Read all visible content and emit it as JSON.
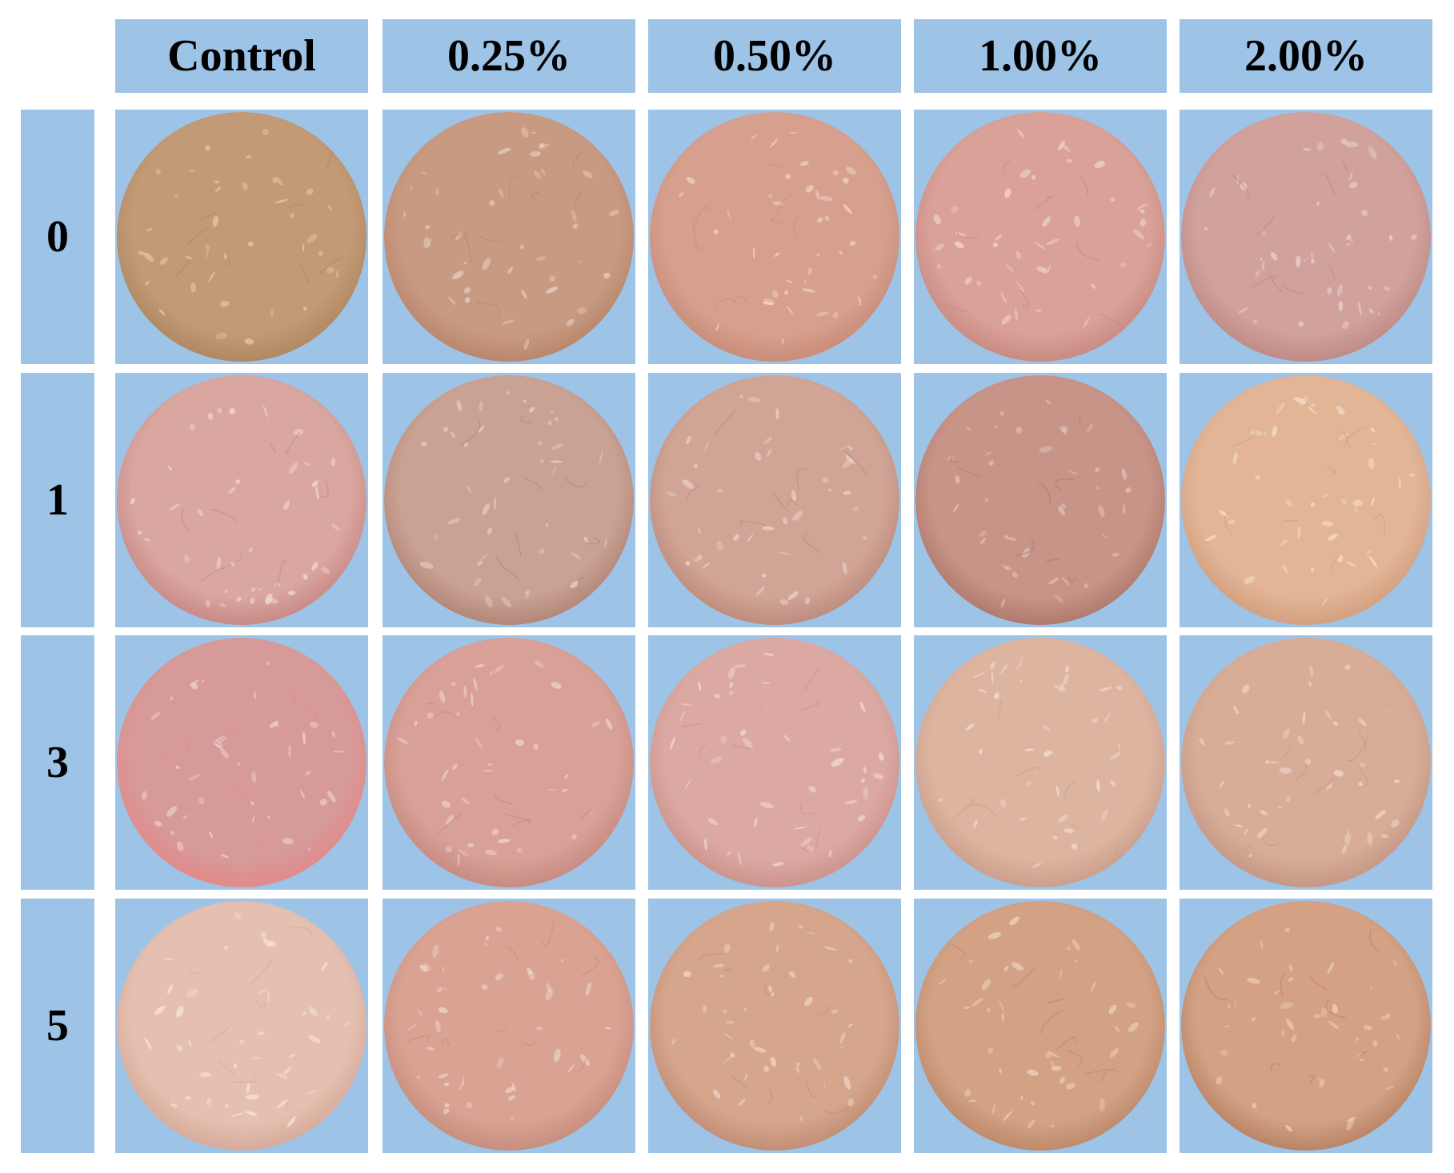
{
  "column_headers": [
    "Control",
    "0.25%",
    "0.50%",
    "1.00%",
    "2.00%"
  ],
  "row_headers": [
    "0",
    "1",
    "3",
    "5"
  ],
  "colors": {
    "cell_background": "#9dc3e6",
    "page_background": "#ffffff"
  },
  "samples": [
    [
      {
        "base": "#c39a76",
        "edge": "#b08862",
        "fleck": "#e2cdb8"
      },
      {
        "base": "#c99a82",
        "edge": "#b8876d",
        "fleck": "#e8d2c4"
      },
      {
        "base": "#d7a08e",
        "edge": "#c98d79",
        "fleck": "#efd6cc"
      },
      {
        "base": "#d9a198",
        "edge": "#c98b82",
        "fleck": "#f0d9d4"
      },
      {
        "base": "#d1a19c",
        "edge": "#c08b86",
        "fleck": "#ead6d4"
      }
    ],
    [
      {
        "base": "#d9a6a0",
        "edge": "#c98a86",
        "fleck": "#f1dcd8"
      },
      {
        "base": "#c9a294",
        "edge": "#b28778",
        "fleck": "#e6d2c8"
      },
      {
        "base": "#d1a596",
        "edge": "#bd8c7e",
        "fleck": "#ecd8cf"
      },
      {
        "base": "#c89487",
        "edge": "#b07b6e",
        "fleck": "#e3c9c0"
      },
      {
        "base": "#e1b596",
        "edge": "#d3a080",
        "fleck": "#f3dfcf"
      }
    ],
    [
      {
        "base": "#d69a98",
        "edge": "#e28a8a",
        "fleck": "#f0d6d6"
      },
      {
        "base": "#d8a096",
        "edge": "#c78b82",
        "fleck": "#f0d8d2"
      },
      {
        "base": "#dca9a2",
        "edge": "#cb948d",
        "fleck": "#f2ddd8"
      },
      {
        "base": "#ddb4a0",
        "edge": "#caa08c",
        "fleck": "#f2e0d6"
      },
      {
        "base": "#d8ad98",
        "edge": "#c49884",
        "fleck": "#efdccf"
      }
    ],
    [
      {
        "base": "#e5c0b0",
        "edge": "#d6ab9b",
        "fleck": "#f7e7e0"
      },
      {
        "base": "#d9a292",
        "edge": "#c78e7e",
        "fleck": "#f0d8d0"
      },
      {
        "base": "#d5a58c",
        "edge": "#c28f76",
        "fleck": "#eed7c9"
      },
      {
        "base": "#d3a184",
        "edge": "#bd8a6c",
        "fleck": "#ecd5c4"
      },
      {
        "base": "#d4a184",
        "edge": "#b98466",
        "fleck": "#ebd3c2"
      }
    ]
  ]
}
